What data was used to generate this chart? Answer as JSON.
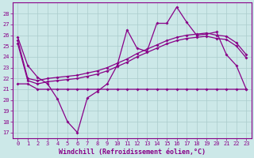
{
  "x": [
    0,
    1,
    2,
    3,
    4,
    5,
    6,
    7,
    8,
    9,
    10,
    11,
    12,
    13,
    14,
    15,
    16,
    17,
    18,
    19,
    20,
    21,
    22,
    23
  ],
  "line1": [
    25.8,
    23.2,
    22.1,
    21.5,
    20.1,
    18.0,
    17.0,
    20.2,
    20.8,
    21.5,
    23.2,
    26.5,
    24.8,
    24.5,
    27.1,
    27.1,
    28.6,
    27.2,
    26.0,
    26.1,
    26.3,
    24.2,
    23.2,
    21.0
  ],
  "line2": [
    25.5,
    22.0,
    21.8,
    22.0,
    22.1,
    22.2,
    22.3,
    22.5,
    22.7,
    23.0,
    23.4,
    23.8,
    24.3,
    24.7,
    25.1,
    25.5,
    25.8,
    26.0,
    26.1,
    26.2,
    26.0,
    25.9,
    25.3,
    24.2
  ],
  "line3": [
    25.2,
    21.8,
    21.5,
    21.7,
    21.8,
    21.9,
    22.0,
    22.2,
    22.4,
    22.7,
    23.1,
    23.5,
    24.0,
    24.4,
    24.8,
    25.2,
    25.5,
    25.7,
    25.8,
    25.9,
    25.7,
    25.6,
    25.0,
    23.9
  ],
  "line4": [
    21.5,
    21.5,
    21.0,
    21.0,
    21.0,
    21.0,
    21.0,
    21.0,
    21.0,
    21.0,
    21.0,
    21.0,
    21.0,
    21.0,
    21.0,
    21.0,
    21.0,
    21.0,
    21.0,
    21.0,
    21.0,
    21.0,
    21.0,
    21.0
  ],
  "line_color": "#880088",
  "bg_color": "#cce8e8",
  "grid_color": "#aacccc",
  "ylim": [
    16.5,
    29.0
  ],
  "yticks": [
    17,
    18,
    19,
    20,
    21,
    22,
    23,
    24,
    25,
    26,
    27,
    28
  ],
  "xlim": [
    -0.5,
    23.5
  ],
  "xlabel": "Windchill (Refroidissement éolien,°C)"
}
